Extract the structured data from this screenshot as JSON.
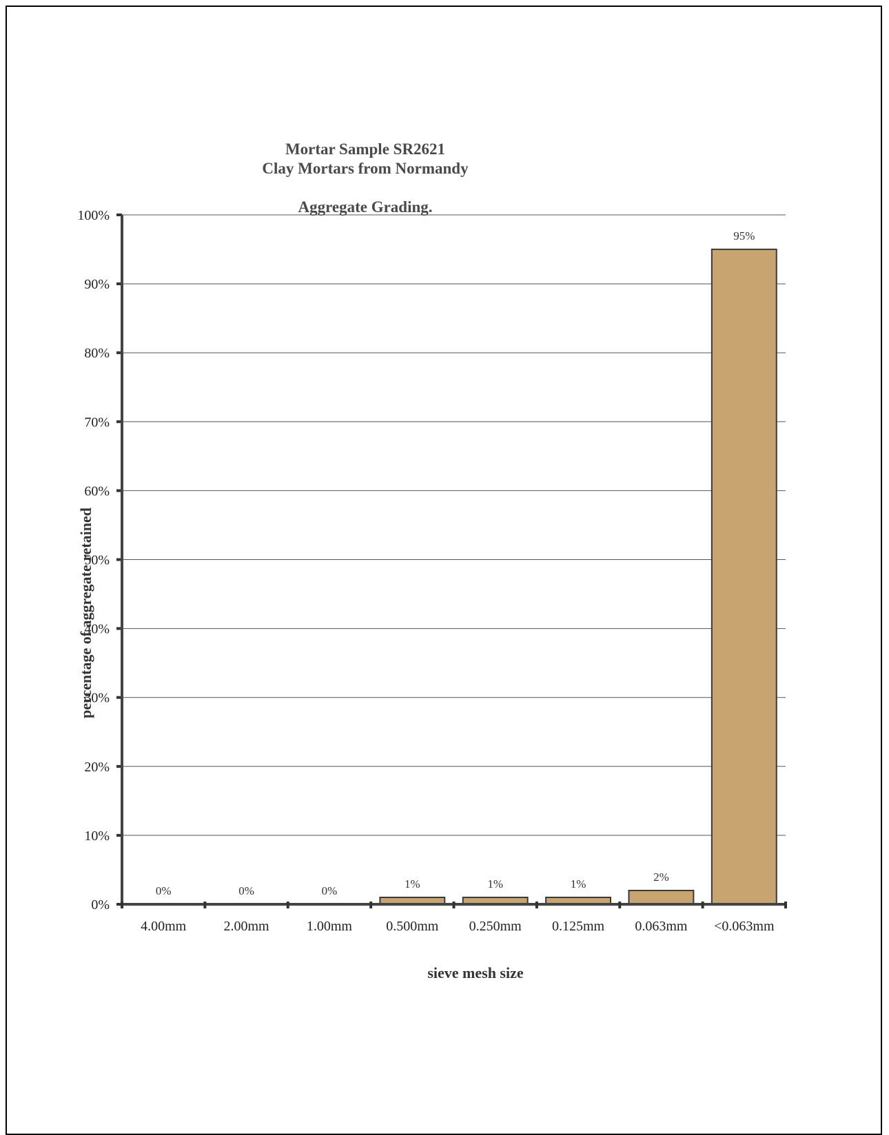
{
  "chart_data": {
    "type": "bar",
    "title_lines": [
      "Mortar Sample  SR2621",
      "Clay Mortars from Normandy"
    ],
    "subtitle": "Aggregate Grading.",
    "xlabel": "sieve mesh size",
    "ylabel": "percentage of aggregate retained",
    "categories": [
      "4.00mm",
      "2.00mm",
      "1.00mm",
      "0.500mm",
      "0.250mm",
      "0.125mm",
      "0.063mm",
      "<0.063mm"
    ],
    "values": [
      0,
      0,
      0,
      1,
      1,
      1,
      2,
      95
    ],
    "data_labels": [
      "0%",
      "0%",
      "0%",
      "1%",
      "1%",
      "1%",
      "2%",
      "95%"
    ],
    "yticks": [
      "0%",
      "10%",
      "20%",
      "30%",
      "40%",
      "50%",
      "60%",
      "70%",
      "80%",
      "90%",
      "100%"
    ],
    "ylim": [
      0,
      100
    ],
    "grid": true,
    "bar_color": "#c8a470",
    "bar_border": "#3a3a3a"
  }
}
